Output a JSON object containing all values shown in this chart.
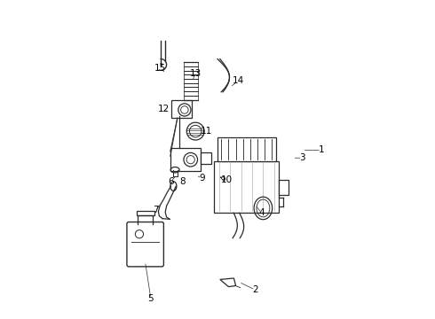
{
  "background_color": "#ffffff",
  "line_color": "#2a2a2a",
  "label_color": "#000000",
  "fig_width": 4.9,
  "fig_height": 3.6,
  "dpi": 100,
  "labels_info": [
    [
      "1",
      [
        0.83,
        0.53
      ],
      [
        0.77,
        0.53
      ]
    ],
    [
      "2",
      [
        0.62,
        0.085
      ],
      [
        0.568,
        0.11
      ]
    ],
    [
      "3",
      [
        0.77,
        0.505
      ],
      [
        0.738,
        0.505
      ]
    ],
    [
      "4",
      [
        0.64,
        0.33
      ],
      [
        0.62,
        0.355
      ]
    ],
    [
      "5",
      [
        0.288,
        0.058
      ],
      [
        0.27,
        0.175
      ]
    ],
    [
      "6",
      [
        0.352,
        0.43
      ],
      [
        0.37,
        0.45
      ]
    ],
    [
      "7",
      [
        0.305,
        0.34
      ],
      [
        0.32,
        0.36
      ]
    ],
    [
      "8",
      [
        0.39,
        0.43
      ],
      [
        0.38,
        0.445
      ]
    ],
    [
      "9",
      [
        0.45,
        0.44
      ],
      [
        0.432,
        0.45
      ]
    ],
    [
      "10",
      [
        0.53,
        0.435
      ],
      [
        0.51,
        0.438
      ]
    ],
    [
      "11",
      [
        0.465,
        0.59
      ],
      [
        0.445,
        0.585
      ]
    ],
    [
      "12",
      [
        0.33,
        0.66
      ],
      [
        0.345,
        0.65
      ]
    ],
    [
      "13",
      [
        0.43,
        0.775
      ],
      [
        0.42,
        0.75
      ]
    ],
    [
      "14",
      [
        0.565,
        0.75
      ],
      [
        0.54,
        0.73
      ]
    ],
    [
      "15",
      [
        0.318,
        0.79
      ],
      [
        0.33,
        0.78
      ]
    ]
  ]
}
